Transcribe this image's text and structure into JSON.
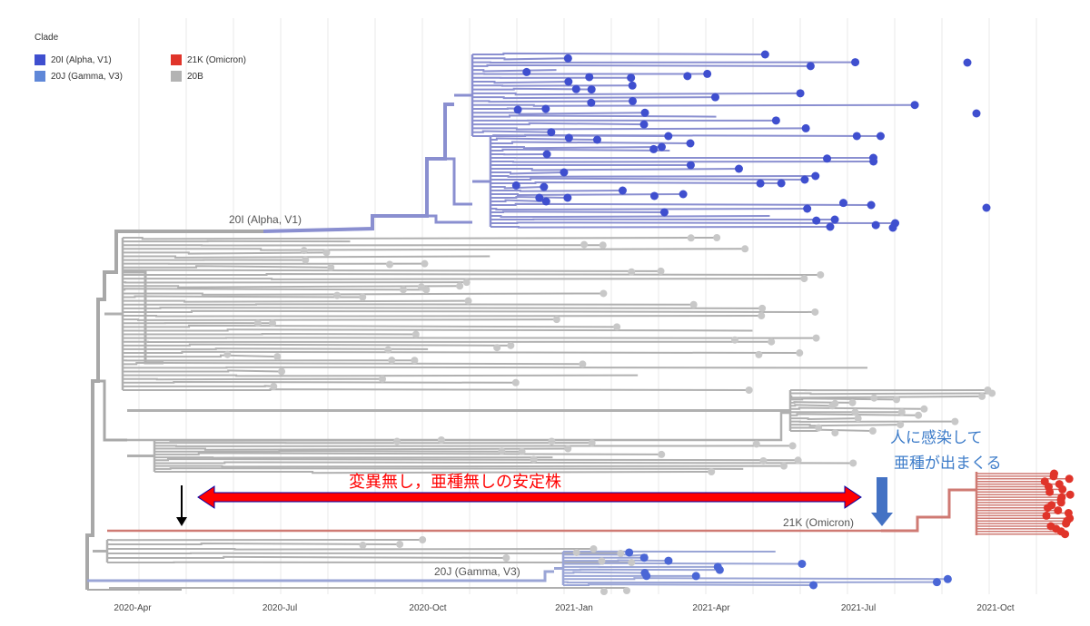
{
  "legend": {
    "title": "Clade",
    "items": [
      {
        "label": "20I (Alpha, V1)",
        "color": "#3f4fcf"
      },
      {
        "label": "21K (Omicron)",
        "color": "#e0342a"
      },
      {
        "label": "20J (Gamma, V3)",
        "color": "#5f87d8"
      },
      {
        "label": "20B",
        "color": "#b3b3b3"
      }
    ]
  },
  "axis": {
    "ticks": [
      "2020-Apr",
      "2020-Jul",
      "2020-Oct",
      "2021-Jan",
      "2021-Apr",
      "2021-Jul",
      "2021-Oct"
    ]
  },
  "clades": {
    "alpha": "20I (Alpha, V1)",
    "omicron": "21K (Omicron)",
    "gamma": "20J (Gamma, V3)"
  },
  "annotations": {
    "stable_strain": "変異無し，亜種無しの安定株",
    "infection_line1": "人に感染して",
    "infection_line2": "亜種が出まくる"
  },
  "colors": {
    "alpha_dot": "#3f4fcf",
    "alpha_branch": "#8a8fd0",
    "gamma_dot": "#4a66d6",
    "gamma_branch": "#9aa5d6",
    "omicron_dot": "#e0342a",
    "omicron_branch": "#cf7a73",
    "base_branch": "#b0b0b0",
    "base_dot": "#c8c8c8",
    "arrow_red": "#ff0000",
    "arrow_blue": "#4472c4",
    "annotation_blue": "#3d7cc9"
  }
}
